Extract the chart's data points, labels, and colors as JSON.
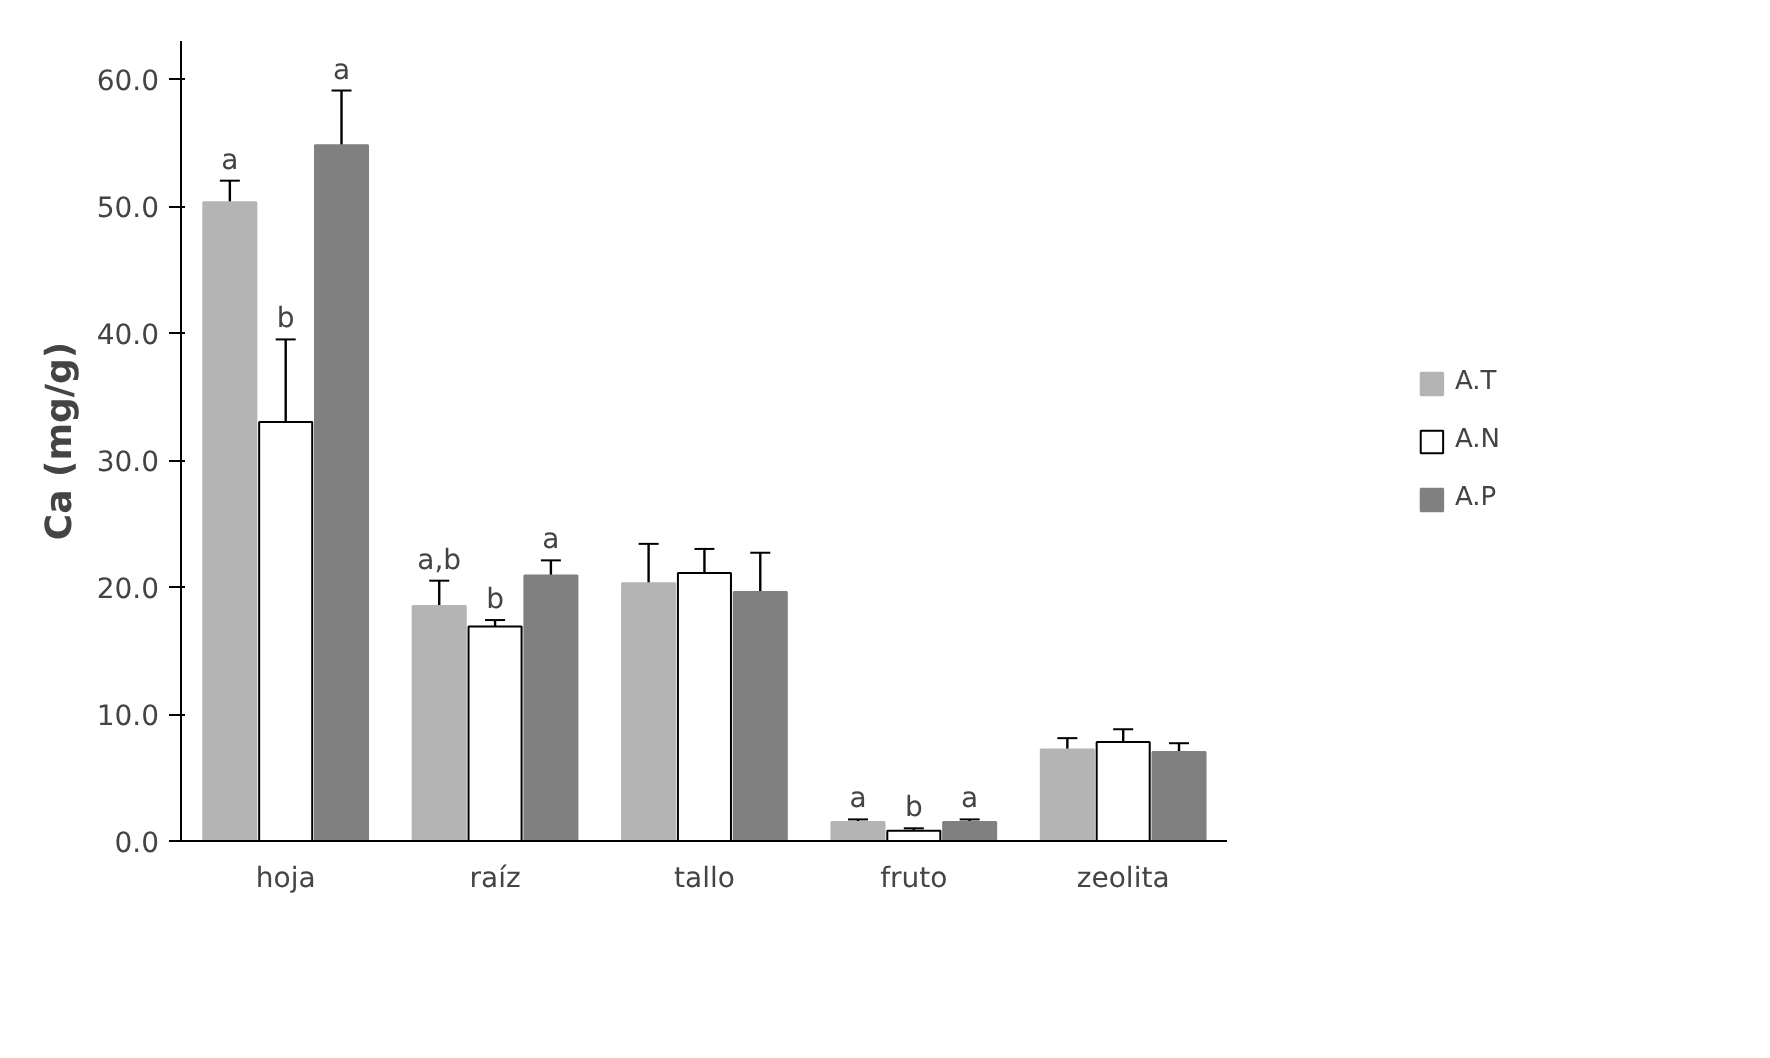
{
  "chart_data": {
    "type": "bar",
    "ylabel": "Ca (mg/g)",
    "categories": [
      "hoja",
      "raíz",
      "tallo",
      "fruto",
      "zeolita"
    ],
    "series": [
      {
        "name": "A.T",
        "color": "#b4b4b4",
        "values": [
          50.3,
          18.5,
          20.3,
          1.5,
          7.2
        ],
        "errors": [
          1.7,
          2.0,
          3.1,
          0.2,
          0.9
        ],
        "value_labels": [
          "a",
          "a,b",
          null,
          "a",
          null
        ]
      },
      {
        "name": "A.N",
        "color": "#ffffff",
        "values": [
          33.0,
          16.9,
          21.1,
          0.8,
          7.8
        ],
        "errors": [
          6.5,
          0.5,
          1.9,
          0.2,
          1.0
        ],
        "value_labels": [
          "b",
          "b",
          null,
          "b",
          null
        ]
      },
      {
        "name": "A.P",
        "color": "#808080",
        "values": [
          54.8,
          20.9,
          19.6,
          1.5,
          7.0
        ],
        "errors": [
          4.3,
          1.2,
          3.1,
          0.2,
          0.7
        ],
        "value_labels": [
          "a",
          "a",
          null,
          "a",
          null
        ]
      }
    ],
    "ylim": [
      0,
      63
    ],
    "yticks": [
      {
        "value": 0,
        "label": "0.0"
      },
      {
        "value": 10,
        "label": "10.0"
      },
      {
        "value": 20,
        "label": "20.0"
      },
      {
        "value": 30,
        "label": "30.0"
      },
      {
        "value": 40,
        "label": "40.0"
      },
      {
        "value": 50,
        "label": "50.0"
      },
      {
        "value": 60,
        "label": "60.0"
      }
    ],
    "grid": false,
    "legend": "right"
  }
}
